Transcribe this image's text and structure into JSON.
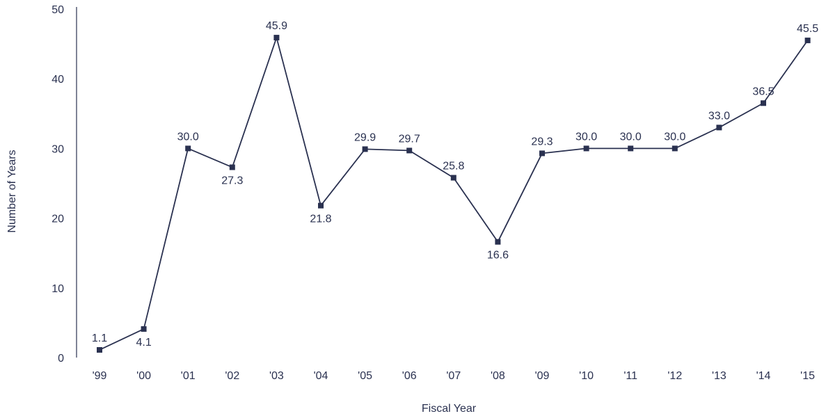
{
  "colors": {
    "line": "#2a3150",
    "axis": "#2a3150",
    "text": "#2a3150",
    "background": "#ffffff"
  },
  "chart_data": {
    "type": "line",
    "title": "",
    "xlabel": "Fiscal Year",
    "ylabel": "Number of Years",
    "ylim": [
      0,
      50
    ],
    "yticks": [
      0,
      10,
      20,
      30,
      40,
      50
    ],
    "grid": false,
    "legend": "none",
    "categories": [
      "'99",
      "'00",
      "'01",
      "'02",
      "'03",
      "'04",
      "'05",
      "'06",
      "'07",
      "'08",
      "'09",
      "'10",
      "'11",
      "'12",
      "'13",
      "'14",
      "'15"
    ],
    "series": [
      {
        "values": [
          1.1,
          4.1,
          30.0,
          27.3,
          45.9,
          21.8,
          29.9,
          29.7,
          25.8,
          16.6,
          29.3,
          30.0,
          30.0,
          30.0,
          33.0,
          36.5,
          45.5
        ],
        "value_labels": [
          "1.1",
          "4.1",
          "30.0",
          "27.3",
          "45.9",
          "21.8",
          "29.9",
          "29.7",
          "25.8",
          "16.6",
          "29.3",
          "30.0",
          "30.0",
          "30.0",
          "33.0",
          "36.5",
          "45.5"
        ],
        "label_positions": [
          "above",
          "below",
          "above",
          "below",
          "above",
          "below",
          "above",
          "above",
          "above",
          "below",
          "above",
          "above",
          "above",
          "above",
          "above",
          "above",
          "above"
        ]
      }
    ]
  }
}
